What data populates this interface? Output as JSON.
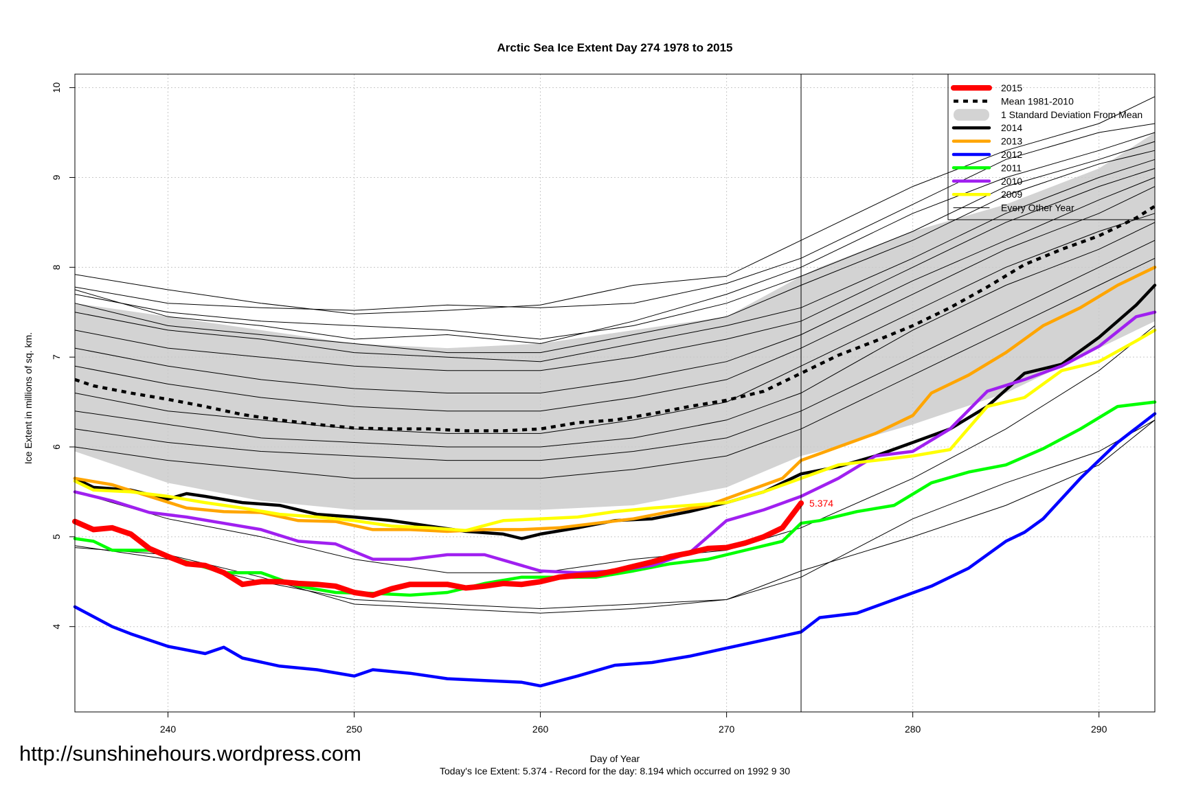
{
  "watermark": "http://sunshinehours.wordpress.com",
  "chart_data": {
    "type": "line",
    "title": "Arctic Sea Ice Extent Day 274 1978 to 2015",
    "xlabel": "Day of Year",
    "ylabel": "Ice Extent in millions of sq. km.",
    "subtitle": "Today's Ice Extent: 5.374  - Record for the day: 8.194 which occurred on 1992 9 30",
    "xlim": [
      235,
      293
    ],
    "ylim": [
      3.05,
      10.15
    ],
    "xticks": [
      240,
      250,
      260,
      270,
      280,
      290
    ],
    "yticks": [
      4,
      5,
      6,
      7,
      8,
      9,
      10
    ],
    "grid": true,
    "current_day": 274,
    "current_value_label": "5.374",
    "legend_position": "top-right",
    "legend": [
      {
        "label": "2015",
        "color": "#ff0000",
        "style": "thick"
      },
      {
        "label": "Mean 1981-2010",
        "color": "#000000",
        "style": "dashed"
      },
      {
        "label": "1 Standard Deviation From Mean",
        "color": "#d3d3d3",
        "style": "band"
      },
      {
        "label": "2014",
        "color": "#000000",
        "style": "line"
      },
      {
        "label": "2013",
        "color": "#ffa500",
        "style": "line"
      },
      {
        "label": "2012",
        "color": "#0000ff",
        "style": "line"
      },
      {
        "label": "2011",
        "color": "#00ff00",
        "style": "line"
      },
      {
        "label": "2010",
        "color": "#a020f0",
        "style": "line"
      },
      {
        "label": "2009",
        "color": "#ffff00",
        "style": "line"
      },
      {
        "label": "Every Other Year",
        "color": "#000000",
        "style": "thin"
      }
    ],
    "x": [
      235,
      240,
      245,
      250,
      255,
      260,
      265,
      270,
      274,
      275,
      280,
      285,
      290,
      293
    ],
    "std_band": {
      "upper": [
        7.6,
        7.45,
        7.3,
        7.15,
        7.1,
        7.15,
        7.3,
        7.45,
        7.9,
        8.0,
        8.4,
        8.7,
        9.1,
        9.5
      ],
      "lower": [
        5.95,
        5.6,
        5.4,
        5.3,
        5.3,
        5.3,
        5.35,
        5.55,
        5.9,
        5.95,
        6.25,
        6.6,
        7.1,
        7.4
      ]
    },
    "series": [
      {
        "name": "Mean 1981-2010",
        "color": "#000000",
        "width": 4.5,
        "dash": "7,7",
        "x": [
          235,
          236,
          238,
          240,
          242,
          244,
          246,
          248,
          250,
          252,
          254,
          256,
          258,
          260,
          262,
          264,
          266,
          268,
          270,
          272,
          274,
          276,
          278,
          280,
          282,
          284,
          286,
          288,
          290,
          292,
          293
        ],
        "values": [
          6.75,
          6.68,
          6.6,
          6.53,
          6.45,
          6.36,
          6.3,
          6.25,
          6.21,
          6.2,
          6.2,
          6.18,
          6.18,
          6.2,
          6.27,
          6.3,
          6.37,
          6.45,
          6.52,
          6.62,
          6.82,
          7.02,
          7.18,
          7.35,
          7.55,
          7.78,
          8.03,
          8.2,
          8.35,
          8.55,
          8.68
        ]
      },
      {
        "name": "2014",
        "color": "#000000",
        "width": 4.5,
        "x": [
          235,
          236,
          238,
          240,
          241,
          242,
          244,
          246,
          248,
          250,
          252,
          254,
          256,
          258,
          259,
          260,
          262,
          264,
          266,
          268,
          270,
          272,
          274,
          276,
          278,
          280,
          282,
          284,
          286,
          288,
          290,
          292,
          293
        ],
        "values": [
          5.65,
          5.55,
          5.52,
          5.42,
          5.48,
          5.45,
          5.38,
          5.35,
          5.25,
          5.22,
          5.18,
          5.12,
          5.06,
          5.03,
          4.98,
          5.03,
          5.1,
          5.18,
          5.2,
          5.28,
          5.38,
          5.5,
          5.7,
          5.78,
          5.9,
          6.05,
          6.2,
          6.45,
          6.82,
          6.92,
          7.22,
          7.58,
          7.8
        ]
      },
      {
        "name": "2013",
        "color": "#ffa500",
        "width": 4.5,
        "x": [
          235,
          237,
          239,
          241,
          243,
          245,
          247,
          249,
          251,
          253,
          255,
          257,
          259,
          261,
          263,
          265,
          267,
          269,
          271,
          273,
          274,
          276,
          278,
          280,
          281,
          283,
          285,
          287,
          289,
          291,
          293
        ],
        "values": [
          5.65,
          5.58,
          5.45,
          5.32,
          5.28,
          5.27,
          5.18,
          5.17,
          5.08,
          5.08,
          5.06,
          5.08,
          5.08,
          5.1,
          5.15,
          5.2,
          5.28,
          5.35,
          5.5,
          5.65,
          5.85,
          6.0,
          6.15,
          6.35,
          6.6,
          6.8,
          7.05,
          7.35,
          7.55,
          7.8,
          8.0
        ]
      },
      {
        "name": "2012",
        "color": "#0000ff",
        "width": 4.5,
        "x": [
          235,
          237,
          238,
          240,
          242,
          243,
          244,
          246,
          248,
          250,
          251,
          253,
          255,
          257,
          259,
          260,
          262,
          264,
          266,
          268,
          270,
          272,
          274,
          275,
          277,
          279,
          281,
          283,
          285,
          286,
          287,
          289,
          291,
          293
        ],
        "values": [
          4.22,
          4.0,
          3.92,
          3.78,
          3.7,
          3.77,
          3.65,
          3.56,
          3.52,
          3.45,
          3.52,
          3.48,
          3.42,
          3.4,
          3.38,
          3.34,
          3.45,
          3.57,
          3.6,
          3.67,
          3.76,
          3.85,
          3.94,
          4.1,
          4.15,
          4.3,
          4.45,
          4.65,
          4.95,
          5.05,
          5.2,
          5.65,
          6.05,
          6.37
        ]
      },
      {
        "name": "2011",
        "color": "#00ff00",
        "width": 4.5,
        "x": [
          235,
          236,
          237,
          239,
          241,
          243,
          245,
          247,
          249,
          251,
          253,
          255,
          257,
          259,
          261,
          263,
          265,
          267,
          269,
          271,
          273,
          274,
          275,
          277,
          279,
          281,
          283,
          285,
          287,
          289,
          291,
          293
        ],
        "values": [
          4.98,
          4.95,
          4.85,
          4.85,
          4.72,
          4.6,
          4.6,
          4.45,
          4.38,
          4.37,
          4.35,
          4.38,
          4.48,
          4.55,
          4.55,
          4.55,
          4.62,
          4.7,
          4.75,
          4.85,
          4.95,
          5.15,
          5.18,
          5.28,
          5.35,
          5.6,
          5.72,
          5.8,
          5.98,
          6.2,
          6.45,
          6.5
        ]
      },
      {
        "name": "2010",
        "color": "#a020f0",
        "width": 4.5,
        "x": [
          235,
          237,
          239,
          241,
          243,
          245,
          247,
          249,
          251,
          253,
          255,
          257,
          259,
          260,
          262,
          264,
          266,
          268,
          270,
          272,
          274,
          276,
          278,
          280,
          282,
          284,
          286,
          288,
          290,
          292,
          293
        ],
        "values": [
          5.5,
          5.4,
          5.27,
          5.22,
          5.15,
          5.08,
          4.95,
          4.92,
          4.75,
          4.75,
          4.8,
          4.8,
          4.68,
          4.62,
          4.6,
          4.62,
          4.68,
          4.82,
          5.18,
          5.3,
          5.45,
          5.65,
          5.9,
          5.95,
          6.2,
          6.62,
          6.75,
          6.9,
          7.12,
          7.45,
          7.5
        ]
      },
      {
        "name": "2009",
        "color": "#ffff00",
        "width": 4.5,
        "x": [
          235,
          236,
          238,
          240,
          242,
          244,
          246,
          248,
          250,
          252,
          254,
          256,
          258,
          260,
          262,
          264,
          266,
          268,
          270,
          272,
          274,
          276,
          278,
          280,
          282,
          284,
          286,
          288,
          290,
          292,
          293
        ],
        "values": [
          5.62,
          5.52,
          5.5,
          5.45,
          5.38,
          5.32,
          5.25,
          5.22,
          5.18,
          5.12,
          5.1,
          5.07,
          5.18,
          5.2,
          5.22,
          5.28,
          5.32,
          5.35,
          5.38,
          5.5,
          5.65,
          5.8,
          5.85,
          5.9,
          5.97,
          6.45,
          6.55,
          6.85,
          6.95,
          7.18,
          7.3
        ]
      },
      {
        "name": "2015",
        "color": "#ff0000",
        "width": 8,
        "x": [
          235,
          236,
          237,
          238,
          239,
          240,
          241,
          242,
          243,
          244,
          245,
          246,
          247,
          248,
          249,
          250,
          251,
          252,
          253,
          254,
          255,
          256,
          257,
          258,
          259,
          260,
          261,
          262,
          263,
          264,
          265,
          266,
          267,
          268,
          269,
          270,
          271,
          272,
          273,
          274
        ],
        "values": [
          5.17,
          5.08,
          5.1,
          5.03,
          4.87,
          4.78,
          4.7,
          4.68,
          4.6,
          4.47,
          4.5,
          4.5,
          4.48,
          4.47,
          4.45,
          4.38,
          4.35,
          4.42,
          4.47,
          4.47,
          4.47,
          4.43,
          4.45,
          4.48,
          4.47,
          4.5,
          4.55,
          4.57,
          4.58,
          4.62,
          4.67,
          4.72,
          4.78,
          4.82,
          4.87,
          4.88,
          4.93,
          5.0,
          5.1,
          5.374
        ]
      }
    ],
    "background_years": [
      {
        "x": [
          235,
          240,
          245,
          250,
          255,
          260,
          265,
          270,
          274,
          280,
          285,
          290,
          293
        ],
        "values": [
          7.92,
          7.75,
          7.6,
          7.48,
          7.52,
          7.58,
          7.8,
          7.9,
          8.3,
          8.9,
          9.3,
          9.6,
          9.9
        ]
      },
      {
        "x": [
          235,
          240,
          245,
          250,
          255,
          260,
          265,
          270,
          274,
          280,
          285,
          290,
          293
        ],
        "values": [
          7.78,
          7.6,
          7.55,
          7.52,
          7.58,
          7.55,
          7.6,
          7.82,
          8.1,
          8.7,
          9.2,
          9.5,
          9.6
        ]
      },
      {
        "x": [
          235,
          240,
          245,
          250,
          255,
          260,
          265,
          270,
          274,
          280,
          285,
          290,
          293
        ],
        "values": [
          7.75,
          7.45,
          7.35,
          7.2,
          7.25,
          7.15,
          7.4,
          7.7,
          8.0,
          8.6,
          9.0,
          9.3,
          9.5
        ]
      },
      {
        "x": [
          235,
          240,
          245,
          250,
          255,
          260,
          265,
          270,
          274,
          280,
          285,
          290,
          293
        ],
        "values": [
          7.7,
          7.5,
          7.4,
          7.35,
          7.3,
          7.2,
          7.35,
          7.6,
          7.9,
          8.4,
          8.9,
          9.2,
          9.4
        ]
      },
      {
        "x": [
          235,
          240,
          245,
          250,
          255,
          260,
          265,
          270,
          274,
          280,
          285,
          290,
          293
        ],
        "values": [
          7.6,
          7.35,
          7.25,
          7.15,
          7.05,
          7.05,
          7.25,
          7.45,
          7.8,
          8.3,
          8.8,
          9.15,
          9.3
        ]
      },
      {
        "x": [
          235,
          240,
          245,
          250,
          255,
          260,
          265,
          270,
          274,
          280,
          285,
          290,
          293
        ],
        "values": [
          7.5,
          7.3,
          7.2,
          7.05,
          7.0,
          6.95,
          7.15,
          7.35,
          7.55,
          8.1,
          8.6,
          9.0,
          9.2
        ]
      },
      {
        "x": [
          235,
          240,
          245,
          250,
          255,
          260,
          265,
          270,
          274,
          280,
          285,
          290,
          293
        ],
        "values": [
          7.3,
          7.1,
          7.0,
          6.9,
          6.85,
          6.85,
          7.0,
          7.2,
          7.4,
          8.0,
          8.5,
          8.9,
          9.1
        ]
      },
      {
        "x": [
          235,
          240,
          245,
          250,
          255,
          260,
          265,
          270,
          274,
          280,
          285,
          290,
          293
        ],
        "values": [
          7.1,
          6.9,
          6.75,
          6.65,
          6.6,
          6.6,
          6.75,
          6.95,
          7.25,
          7.85,
          8.3,
          8.75,
          9.0
        ]
      },
      {
        "x": [
          235,
          240,
          245,
          250,
          255,
          260,
          265,
          270,
          274,
          280,
          285,
          290,
          293
        ],
        "values": [
          6.9,
          6.7,
          6.55,
          6.45,
          6.4,
          6.4,
          6.55,
          6.75,
          7.1,
          7.7,
          8.2,
          8.6,
          8.9
        ]
      },
      {
        "x": [
          235,
          240,
          245,
          250,
          255,
          260,
          265,
          270,
          274,
          280,
          285,
          290,
          293
        ],
        "values": [
          6.6,
          6.4,
          6.3,
          6.2,
          6.15,
          6.15,
          6.3,
          6.5,
          6.9,
          7.5,
          8.0,
          8.4,
          8.6
        ]
      },
      {
        "x": [
          235,
          240,
          245,
          250,
          255,
          260,
          265,
          270,
          274,
          280,
          285,
          290,
          293
        ],
        "values": [
          6.4,
          6.25,
          6.1,
          6.05,
          6.0,
          6.0,
          6.1,
          6.3,
          6.6,
          7.3,
          7.8,
          8.2,
          8.5
        ]
      },
      {
        "x": [
          235,
          240,
          245,
          250,
          255,
          260,
          265,
          270,
          274,
          280,
          285,
          290,
          293
        ],
        "values": [
          6.2,
          6.05,
          5.95,
          5.9,
          5.85,
          5.85,
          5.95,
          6.1,
          6.4,
          7.0,
          7.5,
          8.0,
          8.3
        ]
      },
      {
        "x": [
          235,
          240,
          245,
          250,
          255,
          260,
          265,
          270,
          274,
          280,
          285,
          290,
          293
        ],
        "values": [
          6.0,
          5.85,
          5.75,
          5.65,
          5.65,
          5.65,
          5.75,
          5.9,
          6.2,
          6.8,
          7.3,
          7.8,
          8.1
        ]
      },
      {
        "x": [
          235,
          240,
          245,
          250,
          255,
          260,
          265,
          270,
          274,
          280,
          285,
          290,
          293
        ],
        "values": [
          4.9,
          4.75,
          4.5,
          4.3,
          4.25,
          4.2,
          4.25,
          4.3,
          4.62,
          5.0,
          5.35,
          5.8,
          6.3
        ]
      },
      {
        "x": [
          235,
          240,
          245,
          250,
          255,
          260,
          265,
          270,
          274,
          280,
          285,
          290,
          293
        ],
        "values": [
          4.88,
          4.8,
          4.55,
          4.25,
          4.2,
          4.15,
          4.2,
          4.3,
          4.55,
          5.2,
          5.6,
          5.95,
          6.3
        ]
      },
      {
        "x": [
          235,
          240,
          245,
          250,
          255,
          260,
          265,
          270,
          274,
          280,
          285,
          290,
          293
        ],
        "values": [
          5.5,
          5.2,
          5.0,
          4.75,
          4.6,
          4.6,
          4.75,
          4.85,
          5.1,
          5.65,
          6.2,
          6.85,
          7.35
        ]
      }
    ]
  }
}
